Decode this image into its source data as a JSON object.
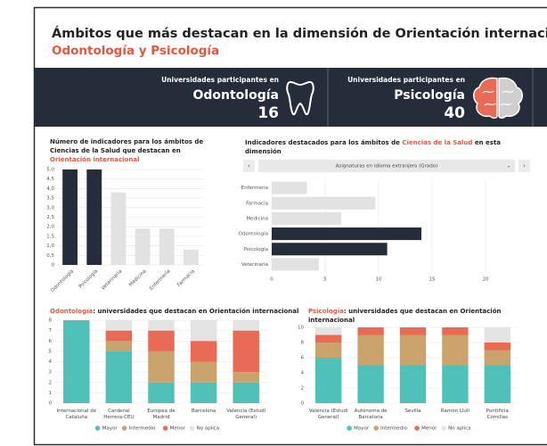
{
  "header": {
    "title": "Ámbitos que más destacan en la dimensión de Orientación internacional:",
    "subtitle": "Odontología y Psicología"
  },
  "stats": [
    {
      "caption": "Universidades participantes en",
      "field": "Odontología",
      "count": 16
    },
    {
      "caption": "Universidades participantes en",
      "field": "Psicología",
      "count": 40
    }
  ],
  "chart_data": [
    {
      "type": "bar",
      "title": [
        {
          "text": "Número de indicadores para los ámbitos de Ciencias de la Salud que destacan en ",
          "color": "#222222"
        },
        {
          "text": "Orientación internacional",
          "color": "#e8553e"
        }
      ],
      "categories": [
        "Odontología",
        "Psicología",
        "Veterinaria",
        "Medicina",
        "Enfermería",
        "Farmacia"
      ],
      "values": [
        5,
        5,
        3.8,
        1.9,
        1.9,
        0.8
      ],
      "colors": [
        "#262d3a",
        "#262d3a",
        "#e2e2e2",
        "#e2e2e2",
        "#e2e2e2",
        "#e2e2e2"
      ],
      "ylim": [
        0,
        5
      ],
      "yticks": [
        0,
        {
          "value": 0.5,
          "label": "0,5"
        },
        {
          "value": 1,
          "label": "1,0"
        },
        {
          "value": 1.5,
          "label": "1,5"
        },
        {
          "value": 2,
          "label": "2,0"
        },
        {
          "value": 2.5,
          "label": "2,5"
        },
        {
          "value": 3,
          "label": "3,0"
        },
        {
          "value": 3.5,
          "label": "3,5"
        },
        {
          "value": 4,
          "label": "4,0"
        },
        {
          "value": 4.5,
          "label": "4,5"
        },
        {
          "value": 5,
          "label": "5,0"
        }
      ],
      "grid": true
    },
    {
      "type": "hbar",
      "title": [
        {
          "text": "Indicadores destacados para los ámbitos de ",
          "color": "#222222"
        },
        {
          "text": "Ciencias de la Salud",
          "color": "#e8553e"
        },
        {
          "text": " en esta dimensión",
          "color": "#222222"
        }
      ],
      "selector": "Asignaturas en idioma extranjero (Grado)",
      "categories": [
        "Enfermería",
        "Farmacia",
        "Medicina",
        "Odontología",
        "Psicología",
        "Veterinaria"
      ],
      "values": [
        3.3,
        9.7,
        6.5,
        14,
        10.8,
        4.4
      ],
      "colors": [
        "#e2e2e2",
        "#e2e2e2",
        "#e2e2e2",
        "#262d3a",
        "#262d3a",
        "#e2e2e2"
      ],
      "xlim": [
        0,
        21
      ],
      "xticks": [
        0,
        5,
        10,
        15,
        20
      ],
      "grid": true
    },
    {
      "type": "stacked_bar",
      "title": [
        {
          "text": "Odontología",
          "color": "#e8553e"
        },
        {
          "text": ": universidades que destacan en Orientación internacional",
          "color": "#222222"
        }
      ],
      "categories": [
        "Internacional de Cataluña",
        "Cardenal Herrera-CEU",
        "Europea de Madrid",
        "Barcelona",
        "Valencia (Estudi General)"
      ],
      "series": [
        {
          "name": "Mayor",
          "color": "#4fc1b9",
          "values": [
            8,
            5,
            2,
            2,
            2
          ]
        },
        {
          "name": "Intermedio",
          "color": "#c9a36b",
          "values": [
            0,
            1,
            3,
            2,
            1
          ]
        },
        {
          "name": "Menor",
          "color": "#e96a55",
          "values": [
            0,
            1,
            2,
            2,
            4
          ]
        },
        {
          "name": "No aplica",
          "color": "#e4e4e4",
          "values": [
            0,
            1,
            1,
            2,
            1
          ]
        }
      ],
      "ylim": [
        0,
        8
      ],
      "yticks": [
        0,
        1,
        2,
        3,
        4,
        5,
        6,
        7,
        8
      ],
      "grid": true
    },
    {
      "type": "stacked_bar",
      "title": [
        {
          "text": "Psicología",
          "color": "#e8553e"
        },
        {
          "text": ": universidades que destacan en Orientación internacional",
          "color": "#222222"
        }
      ],
      "categories": [
        "Valencia (Estudi General)",
        "Autónoma de Barcelona",
        "Sevilla",
        "Ramon Llull",
        "Pontificia Comillas"
      ],
      "series": [
        {
          "name": "Mayor",
          "color": "#4fc1b9",
          "values": [
            6,
            5,
            5,
            5,
            5
          ]
        },
        {
          "name": "Intermedio",
          "color": "#c9a36b",
          "values": [
            2,
            4,
            4,
            4,
            2
          ]
        },
        {
          "name": "Menor",
          "color": "#e96a55",
          "values": [
            1,
            1,
            1,
            1,
            1
          ]
        },
        {
          "name": "No aplica",
          "color": "#e4e4e4",
          "values": [
            1,
            0,
            0,
            0,
            2
          ]
        }
      ],
      "ylim": [
        0,
        10
      ],
      "yticks": [
        0,
        2,
        4,
        6,
        8,
        10
      ],
      "grid": true
    }
  ]
}
